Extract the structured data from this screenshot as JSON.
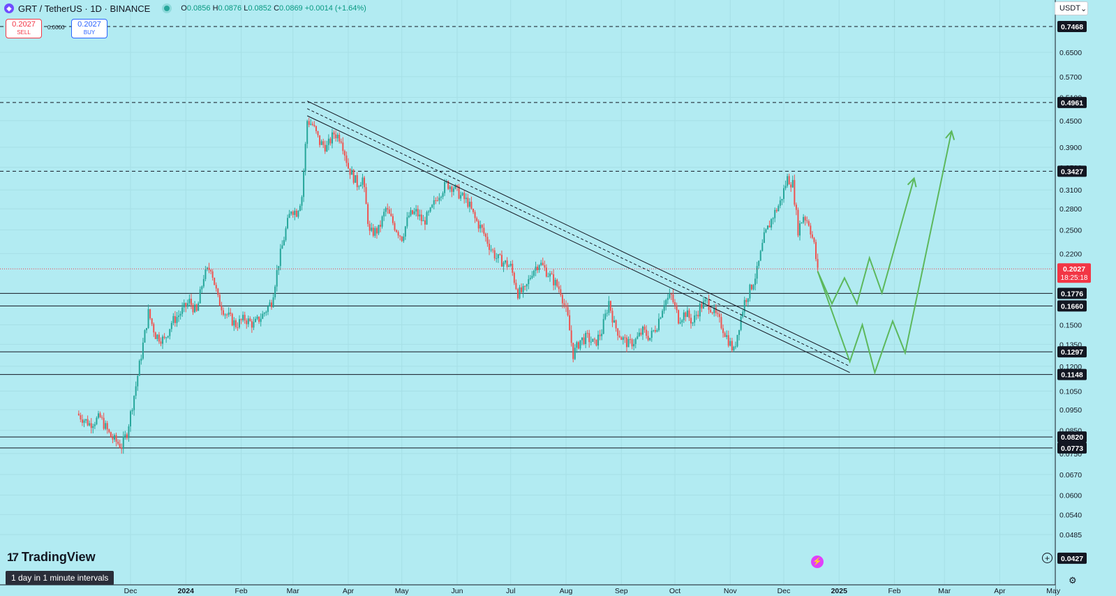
{
  "header": {
    "symbol_icon": "grt-token-icon",
    "title": "GRT / TetherUS · 1D · BINANCE",
    "open_label": "O",
    "open": "0.0856",
    "high_label": "H",
    "high": "0.0876",
    "low_label": "L",
    "low": "0.0852",
    "close_label": "C",
    "close": "0.0869",
    "change": "+0.0014 (+1.64%)"
  },
  "trade": {
    "sell_price": "0.2027",
    "sell_label": "SELL",
    "spread": "0.0000",
    "buy_price": "0.2027",
    "buy_label": "BUY"
  },
  "currency_selector": {
    "value": "USDT"
  },
  "logo": {
    "text": "TradingView"
  },
  "interval_info": "1 day in 1 minute intervals",
  "colors": {
    "background": "#b2ebf2",
    "up": "#26a69a",
    "down": "#ef5350",
    "projection": "#5cb85c",
    "price_badge": "#f23645"
  },
  "chart_data": {
    "type": "candlestick",
    "title": "GRT / TetherUS · 1D · BINANCE",
    "y_scale": "log",
    "ylim": [
      0.042,
      0.86
    ],
    "y_ticks": [
      "0.6500",
      "0.5700",
      "0.5100",
      "0.4500",
      "0.3900",
      "0.3500",
      "0.3100",
      "0.2800",
      "0.2500",
      "0.2200",
      "0.1500",
      "0.1350",
      "0.1200",
      "0.1050",
      "0.0950",
      "0.0850",
      "0.0750",
      "0.0670",
      "0.0600",
      "0.0540",
      "0.0485"
    ],
    "x_ticks": [
      "Dec",
      "2024",
      "Feb",
      "Mar",
      "Apr",
      "May",
      "Jun",
      "Jul",
      "Aug",
      "Sep",
      "Oct",
      "Nov",
      "Dec",
      "2025",
      "Feb",
      "Mar",
      "Apr",
      "May"
    ],
    "price_path": [
      {
        "x": "2023-11-01",
        "y": 0.093
      },
      {
        "x": "2023-11-08",
        "y": 0.088
      },
      {
        "x": "2023-11-14",
        "y": 0.091
      },
      {
        "x": "2023-11-20",
        "y": 0.082
      },
      {
        "x": "2023-11-26",
        "y": 0.078
      },
      {
        "x": "2023-11-29",
        "y": 0.084
      },
      {
        "x": "2023-12-04",
        "y": 0.108
      },
      {
        "x": "2023-12-08",
        "y": 0.135
      },
      {
        "x": "2023-12-11",
        "y": 0.16
      },
      {
        "x": "2023-12-15",
        "y": 0.142
      },
      {
        "x": "2023-12-20",
        "y": 0.138
      },
      {
        "x": "2023-12-24",
        "y": 0.152
      },
      {
        "x": "2023-12-28",
        "y": 0.158
      },
      {
        "x": "2024-01-03",
        "y": 0.17
      },
      {
        "x": "2024-01-07",
        "y": 0.16
      },
      {
        "x": "2024-01-11",
        "y": 0.195
      },
      {
        "x": "2024-01-15",
        "y": 0.205
      },
      {
        "x": "2024-01-19",
        "y": 0.172
      },
      {
        "x": "2024-01-23",
        "y": 0.16
      },
      {
        "x": "2024-01-29",
        "y": 0.15
      },
      {
        "x": "2024-02-03",
        "y": 0.155
      },
      {
        "x": "2024-02-08",
        "y": 0.15
      },
      {
        "x": "2024-02-13",
        "y": 0.158
      },
      {
        "x": "2024-02-18",
        "y": 0.17
      },
      {
        "x": "2024-02-22",
        "y": 0.21
      },
      {
        "x": "2024-02-26",
        "y": 0.25
      },
      {
        "x": "2024-02-29",
        "y": 0.28
      },
      {
        "x": "2024-03-03",
        "y": 0.275
      },
      {
        "x": "2024-03-06",
        "y": 0.3
      },
      {
        "x": "2024-03-09",
        "y": 0.45
      },
      {
        "x": "2024-03-12",
        "y": 0.44
      },
      {
        "x": "2024-03-16",
        "y": 0.4
      },
      {
        "x": "2024-03-20",
        "y": 0.39
      },
      {
        "x": "2024-03-24",
        "y": 0.42
      },
      {
        "x": "2024-03-28",
        "y": 0.41
      },
      {
        "x": "2024-04-01",
        "y": 0.35
      },
      {
        "x": "2024-04-06",
        "y": 0.32
      },
      {
        "x": "2024-04-09",
        "y": 0.33
      },
      {
        "x": "2024-04-13",
        "y": 0.245
      },
      {
        "x": "2024-04-18",
        "y": 0.25
      },
      {
        "x": "2024-04-22",
        "y": 0.28
      },
      {
        "x": "2024-04-27",
        "y": 0.255
      },
      {
        "x": "2024-05-01",
        "y": 0.24
      },
      {
        "x": "2024-05-05",
        "y": 0.27
      },
      {
        "x": "2024-05-09",
        "y": 0.275
      },
      {
        "x": "2024-05-13",
        "y": 0.26
      },
      {
        "x": "2024-05-17",
        "y": 0.275
      },
      {
        "x": "2024-05-21",
        "y": 0.3
      },
      {
        "x": "2024-05-26",
        "y": 0.32
      },
      {
        "x": "2024-05-30",
        "y": 0.315
      },
      {
        "x": "2024-06-03",
        "y": 0.3
      },
      {
        "x": "2024-06-07",
        "y": 0.29
      },
      {
        "x": "2024-06-11",
        "y": 0.265
      },
      {
        "x": "2024-06-15",
        "y": 0.25
      },
      {
        "x": "2024-06-19",
        "y": 0.23
      },
      {
        "x": "2024-06-23",
        "y": 0.215
      },
      {
        "x": "2024-06-27",
        "y": 0.21
      },
      {
        "x": "2024-07-01",
        "y": 0.205
      },
      {
        "x": "2024-07-05",
        "y": 0.178
      },
      {
        "x": "2024-07-09",
        "y": 0.18
      },
      {
        "x": "2024-07-13",
        "y": 0.2
      },
      {
        "x": "2024-07-17",
        "y": 0.21
      },
      {
        "x": "2024-07-21",
        "y": 0.2
      },
      {
        "x": "2024-07-25",
        "y": 0.19
      },
      {
        "x": "2024-07-29",
        "y": 0.18
      },
      {
        "x": "2024-08-02",
        "y": 0.155
      },
      {
        "x": "2024-08-05",
        "y": 0.128
      },
      {
        "x": "2024-08-09",
        "y": 0.138
      },
      {
        "x": "2024-08-13",
        "y": 0.14
      },
      {
        "x": "2024-08-17",
        "y": 0.135
      },
      {
        "x": "2024-08-21",
        "y": 0.145
      },
      {
        "x": "2024-08-25",
        "y": 0.17
      },
      {
        "x": "2024-08-28",
        "y": 0.15
      },
      {
        "x": "2024-09-01",
        "y": 0.14
      },
      {
        "x": "2024-09-05",
        "y": 0.135
      },
      {
        "x": "2024-09-09",
        "y": 0.138
      },
      {
        "x": "2024-09-13",
        "y": 0.145
      },
      {
        "x": "2024-09-17",
        "y": 0.14
      },
      {
        "x": "2024-09-21",
        "y": 0.15
      },
      {
        "x": "2024-09-25",
        "y": 0.17
      },
      {
        "x": "2024-09-29",
        "y": 0.175
      },
      {
        "x": "2024-10-03",
        "y": 0.155
      },
      {
        "x": "2024-10-07",
        "y": 0.16
      },
      {
        "x": "2024-10-11",
        "y": 0.152
      },
      {
        "x": "2024-10-15",
        "y": 0.165
      },
      {
        "x": "2024-10-19",
        "y": 0.17
      },
      {
        "x": "2024-10-23",
        "y": 0.16
      },
      {
        "x": "2024-10-27",
        "y": 0.15
      },
      {
        "x": "2024-10-31",
        "y": 0.138
      },
      {
        "x": "2024-11-03",
        "y": 0.13
      },
      {
        "x": "2024-11-06",
        "y": 0.15
      },
      {
        "x": "2024-11-09",
        "y": 0.17
      },
      {
        "x": "2024-11-13",
        "y": 0.185
      },
      {
        "x": "2024-11-16",
        "y": 0.2
      },
      {
        "x": "2024-11-20",
        "y": 0.24
      },
      {
        "x": "2024-11-25",
        "y": 0.27
      },
      {
        "x": "2024-11-29",
        "y": 0.29
      },
      {
        "x": "2024-12-03",
        "y": 0.33
      },
      {
        "x": "2024-12-06",
        "y": 0.32
      },
      {
        "x": "2024-12-09",
        "y": 0.25
      },
      {
        "x": "2024-12-12",
        "y": 0.27
      },
      {
        "x": "2024-12-15",
        "y": 0.26
      },
      {
        "x": "2024-12-18",
        "y": 0.23
      },
      {
        "x": "2024-12-20",
        "y": 0.2
      }
    ],
    "horizontal_levels": [
      {
        "value": "0.7468",
        "style": "dashed"
      },
      {
        "value": "0.4961",
        "style": "dashed"
      },
      {
        "value": "0.3427",
        "style": "dashed"
      },
      {
        "value": "0.1776",
        "style": "solid"
      },
      {
        "value": "0.1660",
        "style": "solid"
      },
      {
        "value": "0.1297",
        "style": "solid"
      },
      {
        "value": "0.1148",
        "style": "solid"
      },
      {
        "value": "0.0820",
        "style": "solid"
      },
      {
        "value": "0.0773",
        "style": "solid"
      },
      {
        "value": "0.0427",
        "style": "badge"
      }
    ],
    "current_price": {
      "value": "0.2027",
      "countdown": "18:25:18"
    },
    "trend_channel": [
      {
        "x1": "2024-03-09",
        "y1": 0.5,
        "x2": "2025-01-07",
        "y2": 0.124
      },
      {
        "x1": "2024-03-09",
        "y1": 0.48,
        "x2": "2025-01-07",
        "y2": 0.12
      },
      {
        "x1": "2024-03-09",
        "y1": 0.462,
        "x2": "2025-01-07",
        "y2": 0.116
      }
    ],
    "projection_paths": [
      [
        {
          "x": "2024-12-20",
          "y": 0.2
        },
        {
          "x": "2024-12-28",
          "y": 0.168
        },
        {
          "x": "2025-01-04",
          "y": 0.193
        },
        {
          "x": "2025-01-11",
          "y": 0.168
        },
        {
          "x": "2025-01-18",
          "y": 0.215
        },
        {
          "x": "2025-01-25",
          "y": 0.178
        },
        {
          "x": "2025-02-12",
          "y": 0.33
        }
      ],
      [
        {
          "x": "2024-12-20",
          "y": 0.2
        },
        {
          "x": "2025-01-07",
          "y": 0.123
        },
        {
          "x": "2025-01-14",
          "y": 0.15
        },
        {
          "x": "2025-01-21",
          "y": 0.116
        },
        {
          "x": "2025-01-31",
          "y": 0.153
        },
        {
          "x": "2025-02-07",
          "y": 0.129
        },
        {
          "x": "2025-03-05",
          "y": 0.425
        }
      ]
    ]
  }
}
